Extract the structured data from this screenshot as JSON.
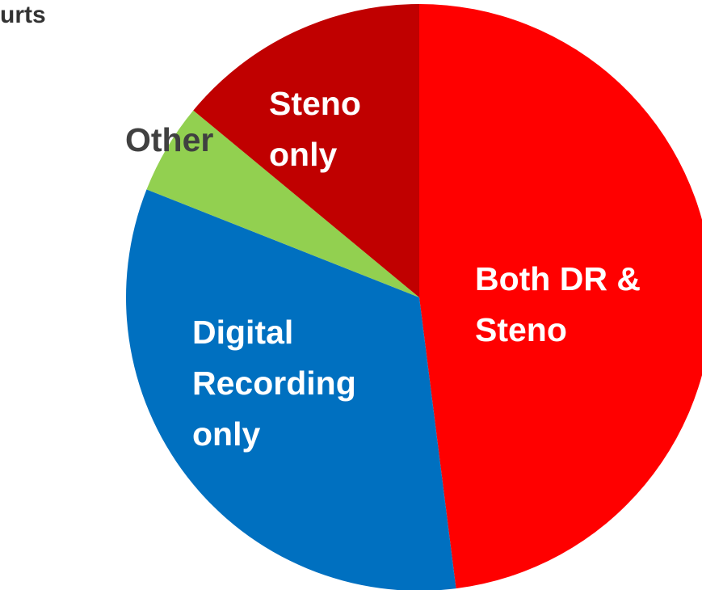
{
  "chart_data": {
    "type": "pie",
    "title": "urts",
    "categories": [
      "Both DR & Steno",
      "Digital Recording only",
      "Other",
      "Steno only"
    ],
    "values": [
      48,
      33,
      5,
      14
    ],
    "colors": [
      "#ff0000",
      "#0070c0",
      "#92d050",
      "#c00000"
    ]
  }
}
